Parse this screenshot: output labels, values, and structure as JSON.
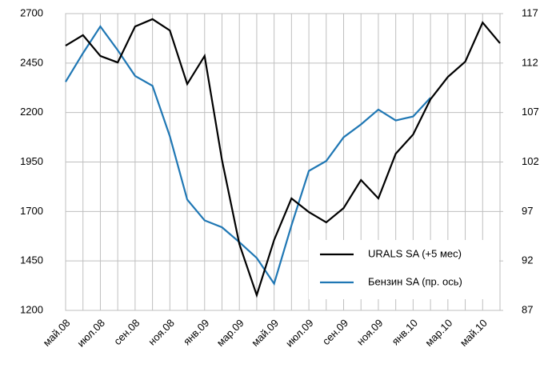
{
  "chart_data": {
    "type": "line",
    "categories": [
      "май.08",
      null,
      "июл.08",
      null,
      "сен.08",
      null,
      "ноя.08",
      null,
      "янв.09",
      null,
      "мар.09",
      null,
      "май.09",
      null,
      "июл.09",
      null,
      "сен.09",
      null,
      "ноя.09",
      null,
      "янв.10",
      null,
      "мар.10",
      null,
      "май.10",
      null
    ],
    "series": [
      {
        "name": "URALS SA (+5 мес)",
        "color": "#000000",
        "values": [
          2538,
          2591,
          2486,
          2453,
          2635,
          2672,
          2615,
          2344,
          2486,
          1960,
          1535,
          1277,
          1556,
          1766,
          1697,
          1645,
          1717,
          1859,
          1766,
          1992,
          2089,
          2267,
          2380,
          2457,
          2655,
          2550
        ]
      },
      {
        "name": "Бензин SA (пр. ось)",
        "color": "#1f77b4",
        "axis": "y2",
        "values": [
          110.1,
          113.0,
          115.7,
          113.3,
          110.7,
          109.7,
          104.6,
          98.2,
          96.1,
          95.4,
          93.9,
          92.3,
          89.7,
          95.6,
          101.1,
          102.1,
          104.5,
          105.8,
          107.3,
          106.2,
          106.6,
          108.5,
          null,
          null,
          null,
          null
        ]
      }
    ],
    "ylim": [
      1200,
      2700
    ],
    "yticks": [
      1200,
      1450,
      1700,
      1950,
      2200,
      2450,
      2700
    ],
    "y2lim": [
      87,
      117
    ],
    "y2ticks": [
      87,
      92,
      97,
      102,
      107,
      112,
      117
    ],
    "grid": true,
    "legend": "lower right"
  }
}
